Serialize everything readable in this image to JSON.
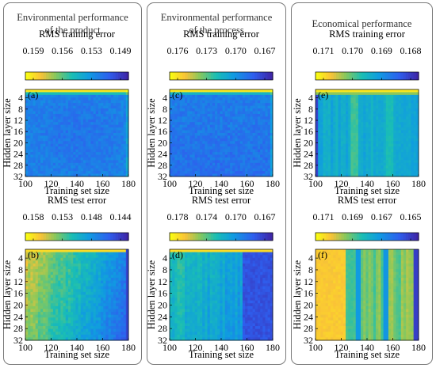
{
  "columns": [
    {
      "title_line1": "Environmental performance",
      "title_line2": "of the product"
    },
    {
      "title_line1": "Environmental performance",
      "title_line2": "of the process"
    },
    {
      "title_line1": "Economical performance",
      "title_line2": ""
    }
  ],
  "chart_data": [
    {
      "type": "heatmap",
      "panel_label": "(a)",
      "title": "RMS training error",
      "colorbar_ticks": [
        "0.159",
        "0.156",
        "0.153",
        "0.149"
      ],
      "clim": [
        0.149,
        0.159
      ],
      "xlabel": "Training set size",
      "ylabel": "Hidden layer size",
      "x_ticks": [
        "100",
        "120",
        "140",
        "160",
        "180"
      ],
      "y_ticks": [
        "4",
        "8",
        "12",
        "16",
        "20",
        "24",
        "28",
        "32"
      ],
      "xlim": [
        100,
        180
      ],
      "ylim": [
        1,
        32
      ],
      "colormap": "parula",
      "pattern": "train_a"
    },
    {
      "type": "heatmap",
      "panel_label": "(c)",
      "title": "RMS training error",
      "colorbar_ticks": [
        "0.176",
        "0.173",
        "0.170",
        "0.167"
      ],
      "clim": [
        0.167,
        0.176
      ],
      "xlabel": "Training set size",
      "ylabel": "Hidden layer size",
      "x_ticks": [
        "100",
        "120",
        "140",
        "160",
        "180"
      ],
      "y_ticks": [
        "4",
        "8",
        "12",
        "16",
        "20",
        "24",
        "28",
        "32"
      ],
      "xlim": [
        100,
        180
      ],
      "ylim": [
        1,
        32
      ],
      "colormap": "parula",
      "pattern": "train_c"
    },
    {
      "type": "heatmap",
      "panel_label": "(e)",
      "title": "RMS training error",
      "colorbar_ticks": [
        "0.171",
        "0.170",
        "0.169",
        "0.168"
      ],
      "clim": [
        0.168,
        0.171
      ],
      "xlabel": "Training set size",
      "ylabel": "Hidden layer size",
      "x_ticks": [
        "100",
        "120",
        "140",
        "160",
        "180"
      ],
      "y_ticks": [
        "4",
        "8",
        "12",
        "16",
        "20",
        "24",
        "28",
        "32"
      ],
      "xlim": [
        100,
        180
      ],
      "ylim": [
        1,
        32
      ],
      "colormap": "parula",
      "pattern": "train_e"
    },
    {
      "type": "heatmap",
      "panel_label": "(b)",
      "title": "RMS test error",
      "colorbar_ticks": [
        "0.158",
        "0.153",
        "0.148",
        "0.144"
      ],
      "clim": [
        0.144,
        0.158
      ],
      "xlabel": "Training set size",
      "ylabel": "Hidden layer size",
      "x_ticks": [
        "100",
        "120",
        "140",
        "160",
        "180"
      ],
      "y_ticks": [
        "4",
        "8",
        "12",
        "16",
        "20",
        "24",
        "28",
        "32"
      ],
      "xlim": [
        100,
        180
      ],
      "ylim": [
        1,
        32
      ],
      "colormap": "parula",
      "pattern": "test_b"
    },
    {
      "type": "heatmap",
      "panel_label": "(d)",
      "title": "RMS test error",
      "colorbar_ticks": [
        "0.178",
        "0.174",
        "0.170",
        "0.167"
      ],
      "clim": [
        0.167,
        0.178
      ],
      "xlabel": "Training set size",
      "ylabel": "Hidden layer size",
      "x_ticks": [
        "100",
        "120",
        "140",
        "160",
        "180"
      ],
      "y_ticks": [
        "4",
        "8",
        "12",
        "16",
        "20",
        "24",
        "28",
        "32"
      ],
      "xlim": [
        100,
        180
      ],
      "ylim": [
        1,
        32
      ],
      "colormap": "parula",
      "pattern": "test_d"
    },
    {
      "type": "heatmap",
      "panel_label": "(f)",
      "title": "RMS test error",
      "colorbar_ticks": [
        "0.171",
        "0.169",
        "0.167",
        "0.165"
      ],
      "clim": [
        0.165,
        0.171
      ],
      "xlabel": "Training set size",
      "ylabel": "Hidden layer size",
      "x_ticks": [
        "100",
        "120",
        "140",
        "160",
        "180"
      ],
      "y_ticks": [
        "4",
        "8",
        "12",
        "16",
        "20",
        "24",
        "28",
        "32"
      ],
      "xlim": [
        100,
        180
      ],
      "ylim": [
        1,
        32
      ],
      "colormap": "parula",
      "pattern": "test_f"
    }
  ]
}
